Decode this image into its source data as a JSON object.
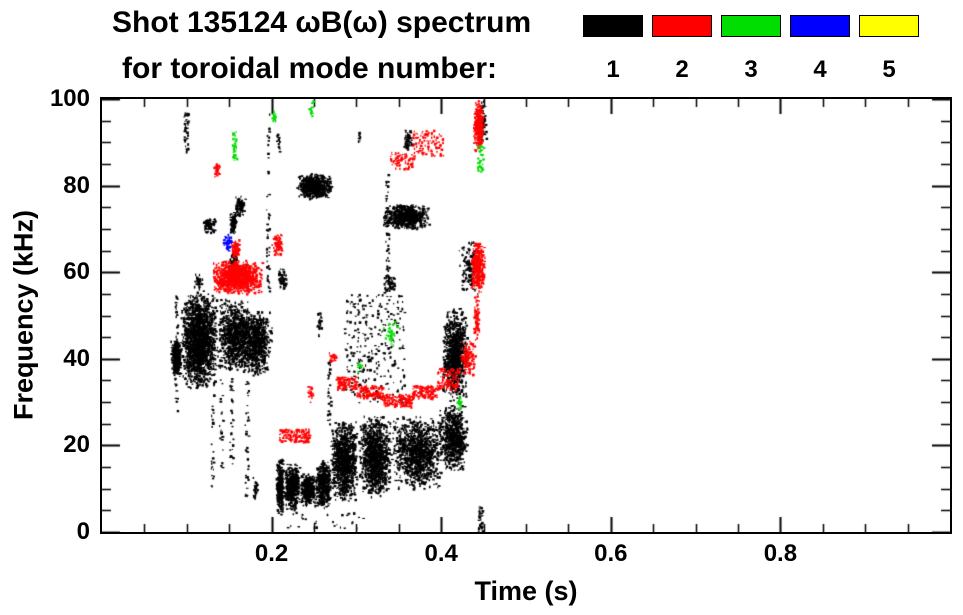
{
  "header": {
    "title_line1": "Shot 135124 ωB(ω) spectrum",
    "title_line2": "for toroidal mode number:"
  },
  "legend": {
    "entries": [
      {
        "label": "1",
        "color": "#000000"
      },
      {
        "label": "2",
        "color": "#ff0000"
      },
      {
        "label": "3",
        "color": "#00dd00"
      },
      {
        "label": "4",
        "color": "#0000ff"
      },
      {
        "label": "5",
        "color": "#ffff00"
      }
    ]
  },
  "chart_data": {
    "type": "scatter",
    "title": "Shot 135124 ωB(ω) spectrum for toroidal mode number",
    "xlabel": "Time (s)",
    "ylabel": "Frequency (kHz)",
    "xlim": [
      0.0,
      1.0
    ],
    "ylim": [
      0,
      100
    ],
    "xticks": [
      0.2,
      0.4,
      0.6,
      0.8
    ],
    "yticks": [
      0,
      20,
      40,
      60,
      80,
      100
    ],
    "x_minor_step": 0.05,
    "y_minor_step": 5,
    "grid": false,
    "legend_position": "top-right",
    "point_units": {
      "t": "s",
      "f": "kHz"
    },
    "series": [
      {
        "name": "n=1",
        "mode_number": 1,
        "color": "#000000",
        "clusters": [
          {
            "t": [
              0.08,
              0.093
            ],
            "f": [
              36,
              45
            ],
            "n": 300,
            "shape": "blob"
          },
          {
            "t": [
              0.085,
              0.089
            ],
            "f": [
              28,
              55
            ],
            "n": 50,
            "shape": "box"
          },
          {
            "t": [
              0.092,
              0.135
            ],
            "f": [
              33,
              56
            ],
            "n": 1800,
            "shape": "blob"
          },
          {
            "t": [
              0.096,
              0.101
            ],
            "f": [
              88,
              97
            ],
            "n": 45,
            "shape": "box"
          },
          {
            "t": [
              0.118,
              0.134
            ],
            "f": [
              69,
              73
            ],
            "n": 70,
            "shape": "blob"
          },
          {
            "t": [
              0.128,
              0.131
            ],
            "f": [
              10,
              32
            ],
            "n": 25,
            "shape": "box"
          },
          {
            "t": [
              0.138,
              0.142
            ],
            "f": [
              12,
              55
            ],
            "n": 45,
            "shape": "box"
          },
          {
            "t": [
              0.135,
              0.175
            ],
            "f": [
              37,
              54
            ],
            "n": 800,
            "shape": "blob"
          },
          {
            "t": [
              0.15,
              0.154
            ],
            "f": [
              15,
              37
            ],
            "n": 30,
            "shape": "box"
          },
          {
            "t": [
              0.15,
              0.158
            ],
            "f": [
              69,
              74
            ],
            "n": 100,
            "shape": "blob"
          },
          {
            "t": [
              0.156,
              0.168
            ],
            "f": [
              73,
              78
            ],
            "n": 100,
            "shape": "blob"
          },
          {
            "t": [
              0.148,
              0.16
            ],
            "f": [
              60,
              66
            ],
            "n": 50,
            "shape": "blob"
          },
          {
            "t": [
              0.108,
              0.118
            ],
            "f": [
              56,
              60
            ],
            "n": 35,
            "shape": "blob"
          },
          {
            "t": [
              0.16,
              0.2
            ],
            "f": [
              36,
              52
            ],
            "n": 750,
            "shape": "blob"
          },
          {
            "t": [
              0.168,
              0.172
            ],
            "f": [
              8,
              35
            ],
            "n": 35,
            "shape": "box"
          },
          {
            "t": [
              0.177,
              0.183
            ],
            "f": [
              7,
              13
            ],
            "n": 30,
            "shape": "blob"
          },
          {
            "t": [
              0.193,
              0.197
            ],
            "f": [
              55,
              97
            ],
            "n": 55,
            "shape": "box"
          },
          {
            "t": [
              0.228,
              0.272
            ],
            "f": [
              77,
              83
            ],
            "n": 600,
            "shape": "blob"
          },
          {
            "t": [
              0.206,
              0.218
            ],
            "f": [
              56,
              61
            ],
            "n": 60,
            "shape": "blob"
          },
          {
            "t": [
              0.204,
              0.214
            ],
            "f": [
              4,
              18
            ],
            "n": 280,
            "shape": "blob"
          },
          {
            "t": [
              0.214,
              0.233
            ],
            "f": [
              5,
              16
            ],
            "n": 500,
            "shape": "blob"
          },
          {
            "t": [
              0.233,
              0.251
            ],
            "f": [
              6,
              14
            ],
            "n": 400,
            "shape": "blob"
          },
          {
            "t": [
              0.251,
              0.269
            ],
            "f": [
              5,
              17
            ],
            "n": 450,
            "shape": "blob"
          },
          {
            "t": [
              0.265,
              0.269
            ],
            "f": [
              25,
              40
            ],
            "n": 35,
            "shape": "box"
          },
          {
            "t": [
              0.268,
              0.301
            ],
            "f": [
              7,
              26
            ],
            "n": 1000,
            "shape": "blob"
          },
          {
            "t": [
              0.285,
              0.356
            ],
            "f": [
              30,
              55
            ],
            "n": 280,
            "shape": "box"
          },
          {
            "t": [
              0.301,
              0.341
            ],
            "f": [
              8,
              27
            ],
            "n": 1100,
            "shape": "blob"
          },
          {
            "t": [
              0.33,
              0.385
            ],
            "f": [
              70,
              76
            ],
            "n": 650,
            "shape": "blob"
          },
          {
            "t": [
              0.334,
              0.338
            ],
            "f": [
              58,
              83
            ],
            "n": 45,
            "shape": "box"
          },
          {
            "t": [
              0.341,
              0.401
            ],
            "f": [
              10,
              27
            ],
            "n": 1100,
            "shape": "blob"
          },
          {
            "t": [
              0.354,
              0.366
            ],
            "f": [
              88,
              93
            ],
            "n": 55,
            "shape": "blob"
          },
          {
            "t": [
              0.396,
              0.431
            ],
            "f": [
              14,
              30
            ],
            "n": 700,
            "shape": "blob"
          },
          {
            "t": [
              0.4,
              0.43
            ],
            "f": [
              30,
              52
            ],
            "n": 900,
            "shape": "blob"
          },
          {
            "t": [
              0.42,
              0.447
            ],
            "f": [
              55,
              68
            ],
            "n": 150,
            "shape": "blob"
          },
          {
            "t": [
              0.443,
              0.448
            ],
            "f": [
              0,
              6
            ],
            "n": 35,
            "shape": "box"
          },
          {
            "t": [
              0.444,
              0.453
            ],
            "f": [
              90,
              100
            ],
            "n": 55,
            "shape": "blob"
          },
          {
            "t": [
              0.205,
              0.209
            ],
            "f": [
              88,
              92
            ],
            "n": 15,
            "shape": "box"
          },
          {
            "t": [
              0.33,
              0.346
            ],
            "f": [
              55,
              60
            ],
            "n": 55,
            "shape": "blob"
          },
          {
            "t": [
              0.252,
              0.259
            ],
            "f": [
              45,
              52
            ],
            "n": 25,
            "shape": "blob"
          },
          {
            "t": [
              0.215,
              0.31
            ],
            "f": [
              1,
              5
            ],
            "n": 30,
            "shape": "box"
          },
          {
            "t": [
              0.3,
              0.304
            ],
            "f": [
              90,
              93
            ],
            "n": 10,
            "shape": "blob"
          }
        ]
      },
      {
        "name": "n=2",
        "mode_number": 2,
        "color": "#ff0000",
        "clusters": [
          {
            "t": [
              0.128,
              0.19
            ],
            "f": [
              55,
              63
            ],
            "n": 1000,
            "shape": "blob"
          },
          {
            "t": [
              0.131,
              0.138
            ],
            "f": [
              82,
              86
            ],
            "n": 40,
            "shape": "blob"
          },
          {
            "t": [
              0.152,
              0.162
            ],
            "f": [
              63,
              68
            ],
            "n": 70,
            "shape": "blob"
          },
          {
            "t": [
              0.208,
              0.245
            ],
            "f": [
              21,
              24
            ],
            "n": 130,
            "shape": "box"
          },
          {
            "t": [
              0.199,
              0.213
            ],
            "f": [
              64,
              69
            ],
            "n": 70,
            "shape": "blob"
          },
          {
            "t": [
              0.275,
              0.3
            ],
            "f": [
              33,
              36
            ],
            "n": 100,
            "shape": "box"
          },
          {
            "t": [
              0.3,
              0.33
            ],
            "f": [
              31,
              34
            ],
            "n": 120,
            "shape": "box"
          },
          {
            "t": [
              0.33,
              0.365
            ],
            "f": [
              29,
              32
            ],
            "n": 130,
            "shape": "box"
          },
          {
            "t": [
              0.365,
              0.395
            ],
            "f": [
              31,
              34
            ],
            "n": 120,
            "shape": "box"
          },
          {
            "t": [
              0.395,
              0.42
            ],
            "f": [
              33,
              38
            ],
            "n": 110,
            "shape": "box"
          },
          {
            "t": [
              0.42,
              0.44
            ],
            "f": [
              36,
              45
            ],
            "n": 120,
            "shape": "blob"
          },
          {
            "t": [
              0.338,
              0.368
            ],
            "f": [
              84,
              88
            ],
            "n": 80,
            "shape": "box"
          },
          {
            "t": [
              0.365,
              0.402
            ],
            "f": [
              87,
              93
            ],
            "n": 90,
            "shape": "box"
          },
          {
            "t": [
              0.437,
              0.449
            ],
            "f": [
              88,
              100
            ],
            "n": 280,
            "shape": "blob"
          },
          {
            "t": [
              0.434,
              0.451
            ],
            "f": [
              55,
              68
            ],
            "n": 300,
            "shape": "blob"
          },
          {
            "t": [
              0.437,
              0.445
            ],
            "f": [
              44,
              55
            ],
            "n": 80,
            "shape": "blob"
          },
          {
            "t": [
              0.267,
              0.277
            ],
            "f": [
              39,
              42
            ],
            "n": 25,
            "shape": "blob"
          },
          {
            "t": [
              0.241,
              0.249
            ],
            "f": [
              30,
              34
            ],
            "n": 20,
            "shape": "blob"
          }
        ]
      },
      {
        "name": "n=3",
        "mode_number": 3,
        "color": "#00dd00",
        "clusters": [
          {
            "t": [
              0.153,
              0.158
            ],
            "f": [
              86,
              93
            ],
            "n": 35,
            "shape": "box"
          },
          {
            "t": [
              0.198,
              0.204
            ],
            "f": [
              94,
              98
            ],
            "n": 15,
            "shape": "blob"
          },
          {
            "t": [
              0.243,
              0.249
            ],
            "f": [
              96,
              100
            ],
            "n": 14,
            "shape": "blob"
          },
          {
            "t": [
              0.33,
              0.348
            ],
            "f": [
              43,
              49
            ],
            "n": 35,
            "shape": "blob"
          },
          {
            "t": [
              0.417,
              0.424
            ],
            "f": [
              28,
              32
            ],
            "n": 20,
            "shape": "blob"
          },
          {
            "t": [
              0.442,
              0.449
            ],
            "f": [
              83,
              90
            ],
            "n": 35,
            "shape": "box"
          },
          {
            "t": [
              0.3,
              0.307
            ],
            "f": [
              37,
              40
            ],
            "n": 12,
            "shape": "blob"
          }
        ]
      },
      {
        "name": "n=4",
        "mode_number": 4,
        "color": "#0000ff",
        "clusters": [
          {
            "t": [
              0.142,
              0.153
            ],
            "f": [
              65,
              69
            ],
            "n": 40,
            "shape": "blob"
          }
        ]
      },
      {
        "name": "n=5",
        "mode_number": 5,
        "color": "#ffff00",
        "clusters": []
      }
    ]
  }
}
